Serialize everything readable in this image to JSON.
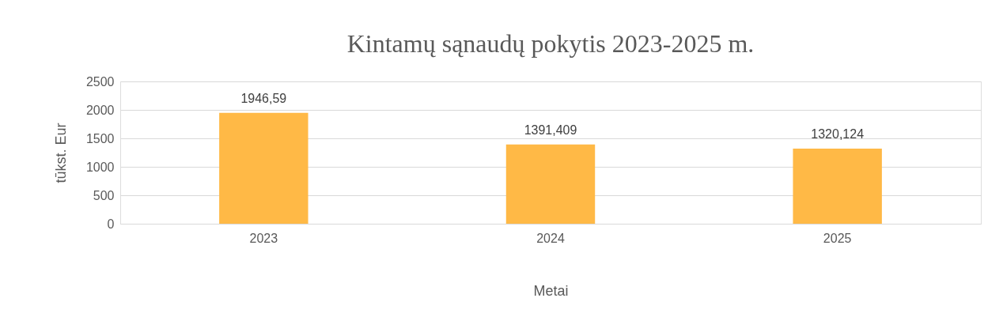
{
  "chart_data": {
    "type": "bar",
    "title": "Kintamų sąnaudų pokytis 2023-2025 m.",
    "xlabel": "Metai",
    "ylabel": "tūkst. Eur",
    "categories": [
      "2023",
      "2024",
      "2025"
    ],
    "values": [
      1946.59,
      1391.409,
      1320.124
    ],
    "value_labels": [
      "1946,59",
      "1391,409",
      "1320,124"
    ],
    "color": "#ffb946",
    "ylim": [
      0,
      2500
    ],
    "yticks": [
      0,
      500,
      1000,
      1500,
      2000,
      2500
    ],
    "grid": "y"
  }
}
